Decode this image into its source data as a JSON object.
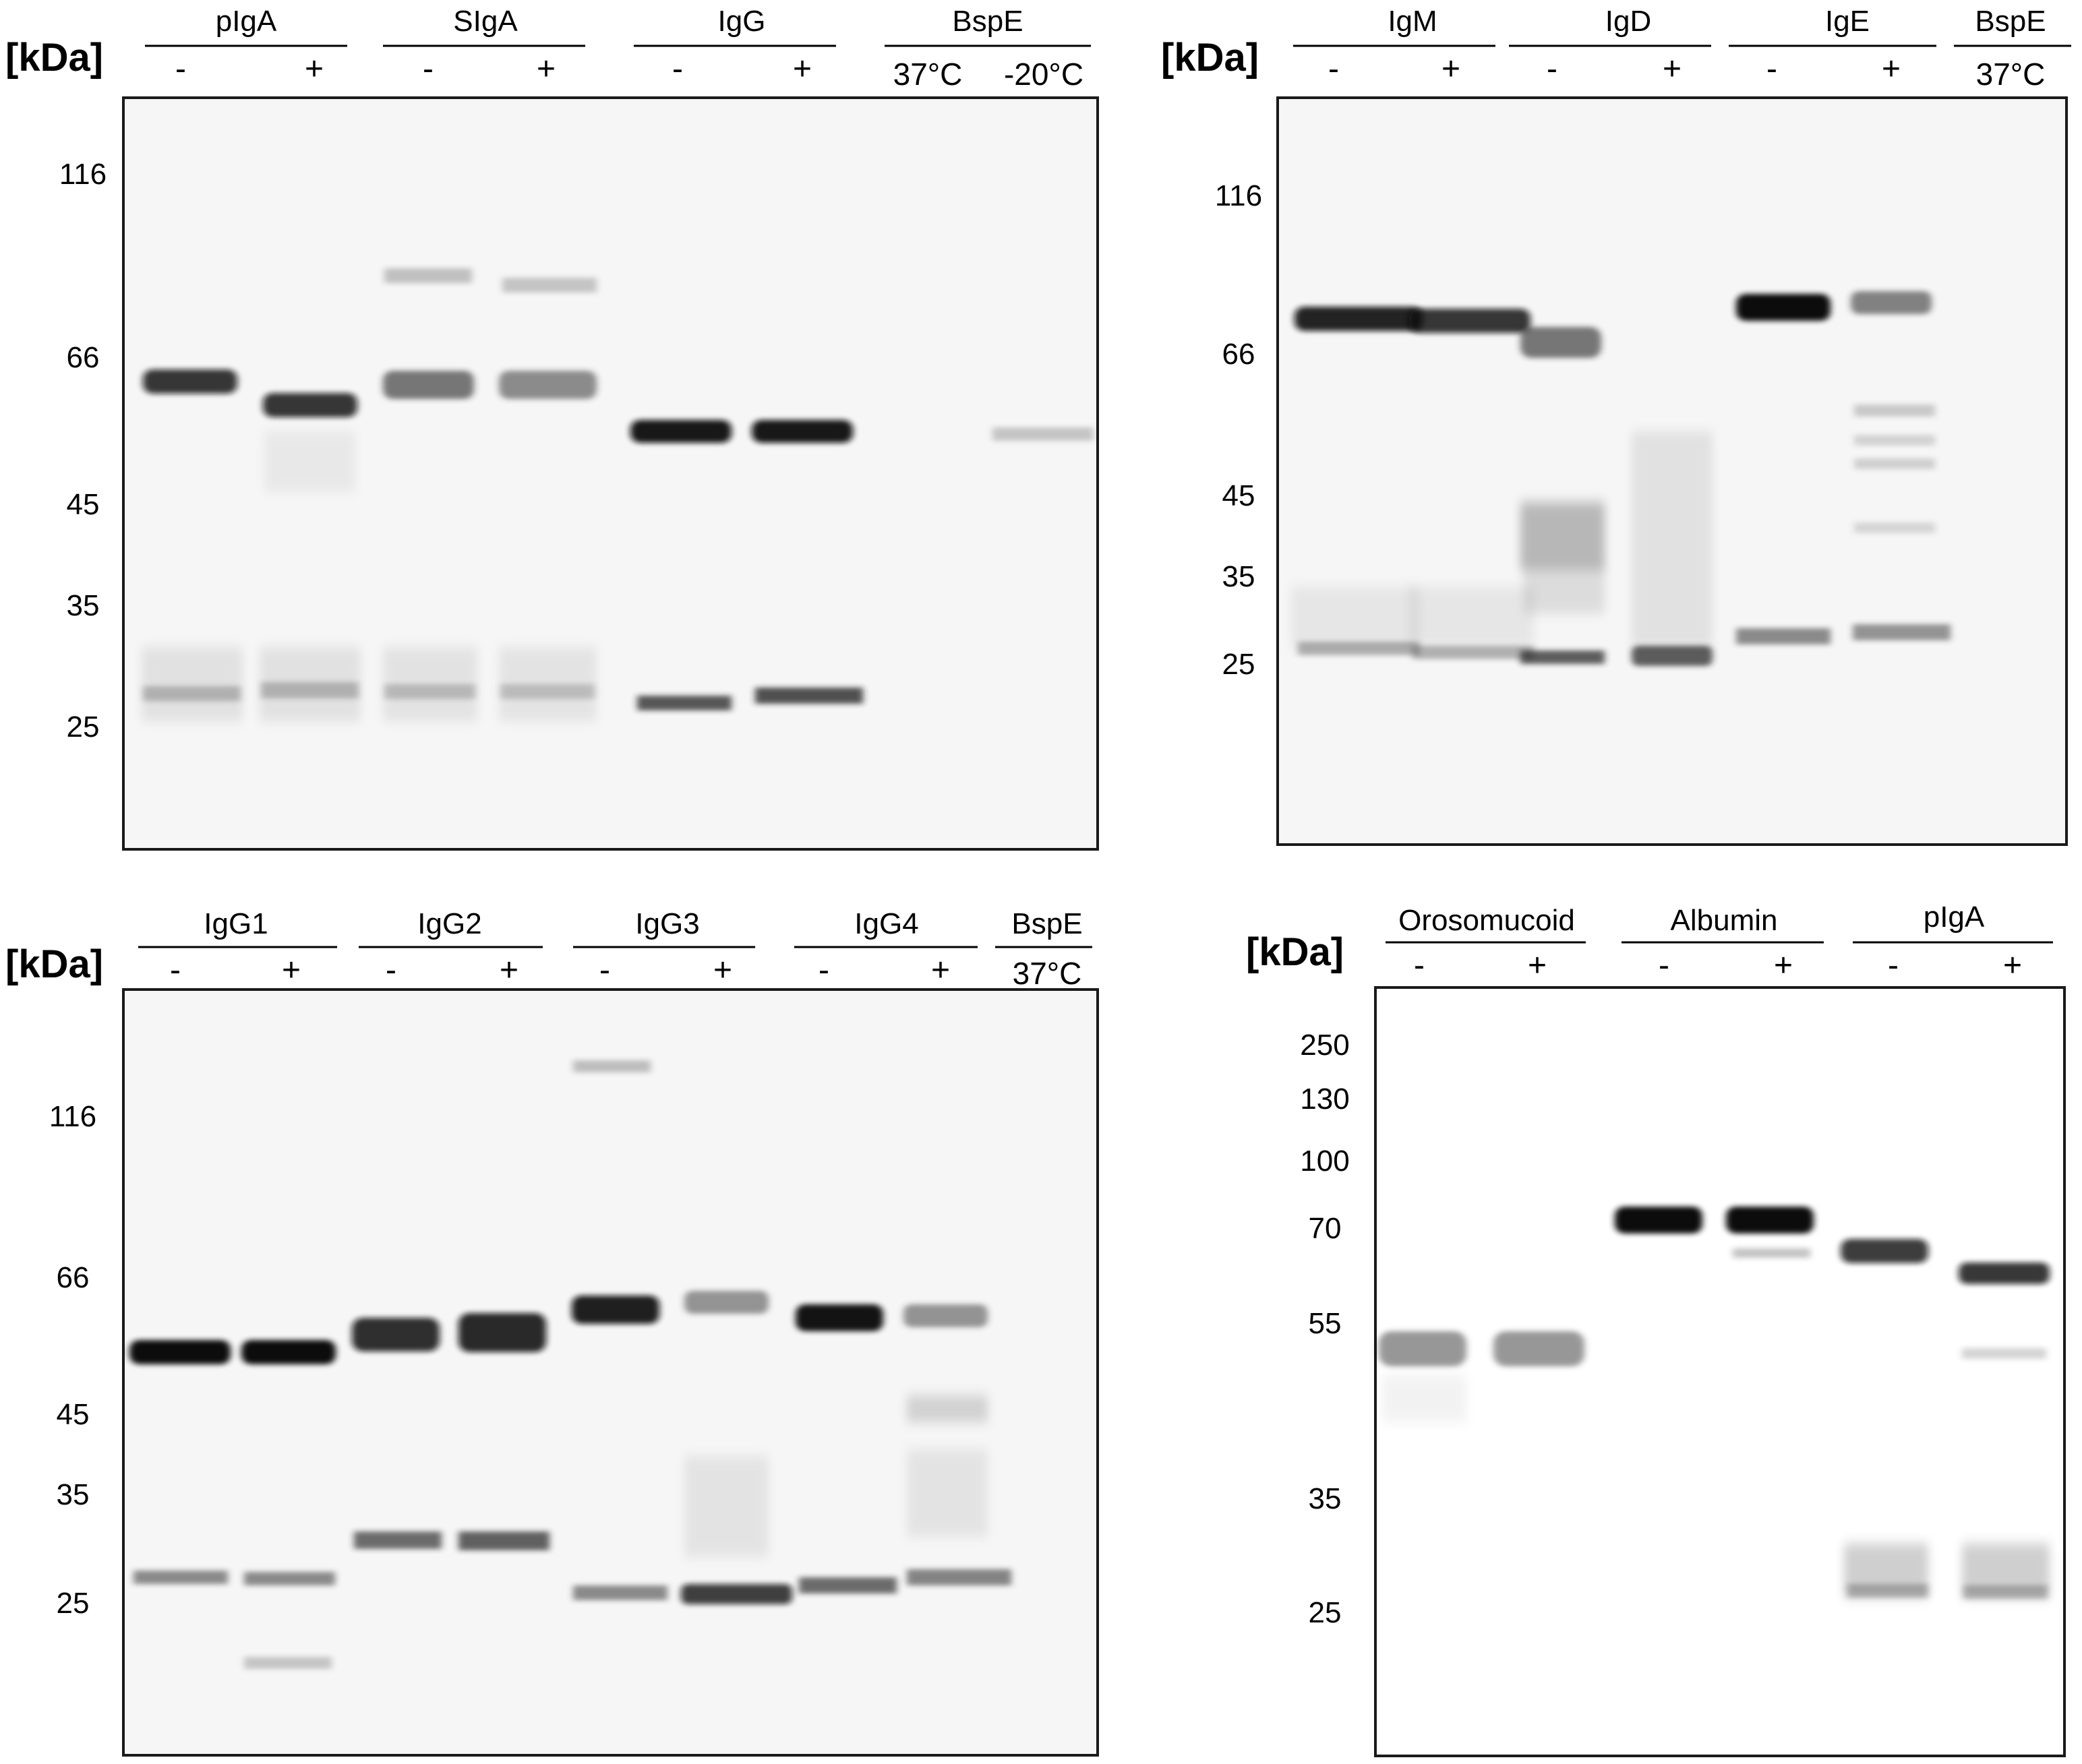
{
  "colors": {
    "band": "#111111",
    "gel_background": "#f6f6f6",
    "border": "#1a1a1a"
  },
  "panels": [
    {
      "id": "top-left",
      "unit_label": "[kDa]",
      "markers": [
        "116",
        "66",
        "45",
        "35",
        "25"
      ],
      "groups": [
        {
          "name": "pIgA",
          "lanes": [
            "-",
            "+"
          ]
        },
        {
          "name": "SIgA",
          "lanes": [
            "-",
            "+"
          ]
        },
        {
          "name": "IgG",
          "lanes": [
            "-",
            "+"
          ]
        },
        {
          "name": "BspE",
          "lanes": [
            "37°C",
            "-20°C"
          ]
        }
      ]
    },
    {
      "id": "top-right",
      "unit_label": "[kDa]",
      "markers": [
        "116",
        "66",
        "45",
        "35",
        "25"
      ],
      "groups": [
        {
          "name": "IgM",
          "lanes": [
            "-",
            "+"
          ]
        },
        {
          "name": "IgD",
          "lanes": [
            "-",
            "+"
          ]
        },
        {
          "name": "IgE",
          "lanes": [
            "-",
            "+"
          ]
        },
        {
          "name": "BspE",
          "lanes": [
            "37°C"
          ]
        }
      ]
    },
    {
      "id": "bottom-left",
      "unit_label": "[kDa]",
      "markers": [
        "116",
        "66",
        "45",
        "35",
        "25"
      ],
      "groups": [
        {
          "name": "IgG1",
          "lanes": [
            "-",
            "+"
          ]
        },
        {
          "name": "IgG2",
          "lanes": [
            "-",
            "+"
          ]
        },
        {
          "name": "IgG3",
          "lanes": [
            "-",
            "+"
          ]
        },
        {
          "name": "IgG4",
          "lanes": [
            "-",
            "+"
          ]
        },
        {
          "name": "BspE",
          "lanes": [
            "37°C"
          ]
        }
      ]
    },
    {
      "id": "bottom-right",
      "unit_label": "[kDa]",
      "markers": [
        "250",
        "130",
        "100",
        "70",
        "55",
        "35",
        "25"
      ],
      "groups": [
        {
          "name": "Orosomucoid",
          "lanes": [
            "-",
            "+"
          ]
        },
        {
          "name": "Albumin",
          "lanes": [
            "-",
            "+"
          ]
        },
        {
          "name": "pIgA",
          "lanes": [
            "-",
            "+"
          ]
        }
      ]
    }
  ]
}
